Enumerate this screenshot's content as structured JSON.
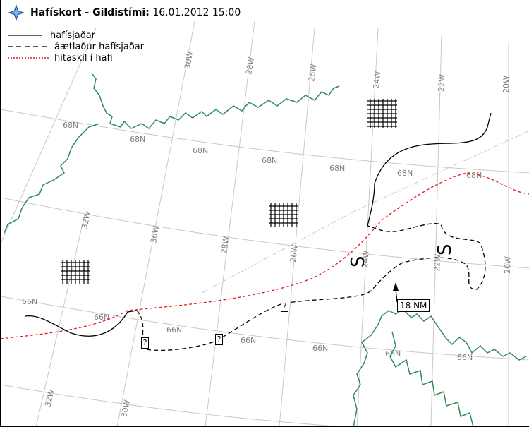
{
  "header": {
    "title_bold": "Hafískort - Gildistími:",
    "title_time": "16.01.2012 15:00",
    "logo_icon": "vedurstofa-logo-icon"
  },
  "legend": {
    "items": [
      {
        "label": "hafísjaðar",
        "style": "solid",
        "color": "#000000"
      },
      {
        "label": "áætlaður hafísjaðar",
        "style": "dashed",
        "color": "#000000"
      },
      {
        "label": "hitaskil í hafi",
        "style": "dotted",
        "color": "#e31a1c"
      }
    ]
  },
  "map": {
    "coast_color": "#2e8b57",
    "grid_color": "#c8c8c8",
    "lat_labels": [
      "68N",
      "68N",
      "68N",
      "68N",
      "68N",
      "66N",
      "66N",
      "66N",
      "66N",
      "66N"
    ],
    "lon_labels": [
      "30W",
      "28W",
      "26W",
      "24W",
      "22W",
      "20W",
      "32W",
      "30W",
      "28W",
      "26W",
      "24W",
      "22W",
      "20W",
      "32W",
      "30W"
    ],
    "distance_label": "18 NM",
    "unknown_marker": "?"
  }
}
